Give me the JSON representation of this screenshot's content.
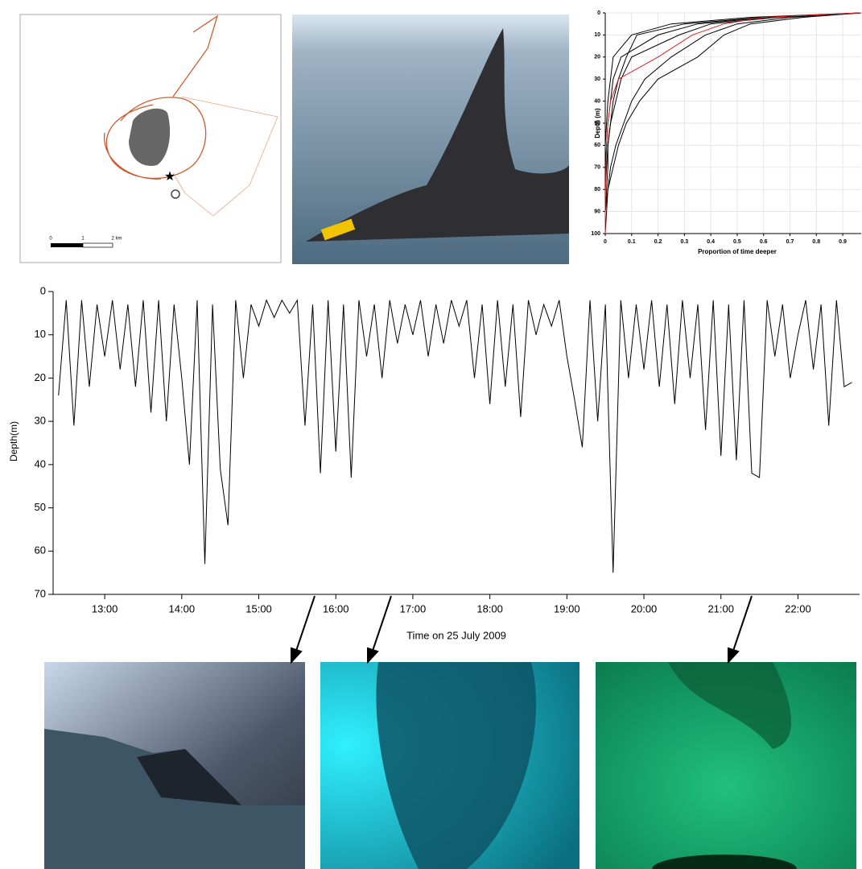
{
  "map": {
    "scale_labels": [
      "0",
      "1",
      "2 km"
    ]
  },
  "chart_data": [
    {
      "type": "line",
      "xlabel": "Proportion of time deeper",
      "ylabel": "Depth (m)",
      "y": [
        0,
        2,
        5,
        10,
        20,
        30,
        40,
        50,
        60,
        70,
        80,
        90,
        100
      ],
      "series": [
        {
          "color": "#000000",
          "values": [
            0.97,
            0.6,
            0.3,
            0.12,
            0.08,
            0.05,
            0.03,
            0.02,
            0.01,
            0.005,
            0,
            0,
            0
          ]
        },
        {
          "color": "#000000",
          "values": [
            0.97,
            0.65,
            0.4,
            0.28,
            0.1,
            0.06,
            0.04,
            0.02,
            0.01,
            0.01,
            0.005,
            0,
            0
          ]
        },
        {
          "color": "#000000",
          "values": [
            0.97,
            0.7,
            0.5,
            0.38,
            0.25,
            0.15,
            0.1,
            0.07,
            0.04,
            0.02,
            0.01,
            0,
            0
          ]
        },
        {
          "color": "#000000",
          "values": [
            0.97,
            0.75,
            0.55,
            0.45,
            0.35,
            0.2,
            0.13,
            0.08,
            0.05,
            0.03,
            0.01,
            0.005,
            0
          ]
        },
        {
          "color": "#000000",
          "values": [
            0.97,
            0.55,
            0.25,
            0.1,
            0.03,
            0.02,
            0.01,
            0.005,
            0,
            0,
            0,
            0,
            0
          ]
        },
        {
          "color": "#000000",
          "values": [
            0.97,
            0.62,
            0.35,
            0.2,
            0.06,
            0.03,
            0.02,
            0.01,
            0.005,
            0,
            0,
            0,
            0
          ]
        },
        {
          "color": "#e02020",
          "values": [
            0.97,
            0.6,
            0.45,
            0.33,
            0.2,
            0.05,
            0.02,
            0.01,
            0.005,
            0.003,
            0.001,
            0,
            0
          ]
        }
      ],
      "xlim": [
        0,
        0.97
      ],
      "xticks": [
        0,
        0.1,
        0.2,
        0.3,
        0.4,
        0.5,
        0.6,
        0.7,
        0.8,
        0.9
      ],
      "ylim": [
        0,
        100
      ],
      "yticks": [
        0,
        10,
        20,
        30,
        40,
        50,
        60,
        70,
        80,
        90,
        100
      ],
      "y_inverted": true,
      "grid": true
    },
    {
      "type": "line",
      "xlabel": "Time on 25 July 2009",
      "ylabel": "Depth(m)",
      "x": [
        12.4,
        12.5,
        12.6,
        12.7,
        12.8,
        12.9,
        13.0,
        13.1,
        13.2,
        13.3,
        13.4,
        13.5,
        13.6,
        13.7,
        13.8,
        13.9,
        14.0,
        14.1,
        14.2,
        14.3,
        14.4,
        14.5,
        14.6,
        14.7,
        14.8,
        14.9,
        15.0,
        15.1,
        15.2,
        15.3,
        15.4,
        15.5,
        15.6,
        15.7,
        15.8,
        15.9,
        16.0,
        16.1,
        16.2,
        16.3,
        16.4,
        16.5,
        16.6,
        16.7,
        16.8,
        16.9,
        17.0,
        17.1,
        17.2,
        17.3,
        17.4,
        17.5,
        17.6,
        17.7,
        17.8,
        17.9,
        18.0,
        18.1,
        18.2,
        18.3,
        18.4,
        18.5,
        18.6,
        18.7,
        18.8,
        18.9,
        19.0,
        19.1,
        19.2,
        19.3,
        19.4,
        19.5,
        19.6,
        19.7,
        19.8,
        19.9,
        20.0,
        20.1,
        20.2,
        20.3,
        20.4,
        20.5,
        20.6,
        20.7,
        20.8,
        20.9,
        21.0,
        21.1,
        21.2,
        21.3,
        21.4,
        21.5,
        21.6,
        21.7,
        21.8,
        21.9,
        22.0,
        22.1,
        22.2,
        22.3,
        22.4,
        22.5,
        22.6,
        22.7
      ],
      "series": [
        {
          "color": "#000000",
          "values": [
            24,
            2,
            31,
            2,
            22,
            3,
            15,
            2,
            18,
            3,
            22,
            2,
            28,
            2,
            30,
            3,
            20,
            40,
            2,
            63,
            3,
            41,
            54,
            2,
            20,
            3,
            8,
            2,
            6,
            2,
            5,
            2,
            31,
            3,
            42,
            2,
            37,
            3,
            43,
            2,
            15,
            3,
            20,
            2,
            12,
            3,
            10,
            2,
            15,
            3,
            12,
            2,
            8,
            2,
            20,
            3,
            26,
            2,
            22,
            3,
            29,
            2,
            10,
            3,
            8,
            2,
            15,
            25,
            36,
            2,
            30,
            3,
            65,
            2,
            20,
            3,
            18,
            2,
            22,
            3,
            26,
            2,
            20,
            3,
            32,
            2,
            38,
            3,
            39,
            2,
            42,
            43,
            2,
            15,
            3,
            20,
            10,
            2,
            18,
            3,
            31,
            2,
            22,
            21
          ]
        }
      ],
      "xlim": [
        12.33,
        22.8
      ],
      "xticks": [
        {
          "value": 13,
          "label": "13:00"
        },
        {
          "value": 14,
          "label": "14:00"
        },
        {
          "value": 15,
          "label": "15:00"
        },
        {
          "value": 16,
          "label": "16:00"
        },
        {
          "value": 17,
          "label": "17:00"
        },
        {
          "value": 18,
          "label": "18:00"
        },
        {
          "value": 19,
          "label": "19:00"
        },
        {
          "value": 20,
          "label": "20:00"
        },
        {
          "value": 21,
          "label": "21:00"
        },
        {
          "value": 22,
          "label": "22:00"
        }
      ],
      "ylim": [
        0,
        70
      ],
      "yticks": [
        0,
        10,
        20,
        30,
        40,
        50,
        60,
        70
      ],
      "y_inverted": true,
      "grid": false
    }
  ]
}
